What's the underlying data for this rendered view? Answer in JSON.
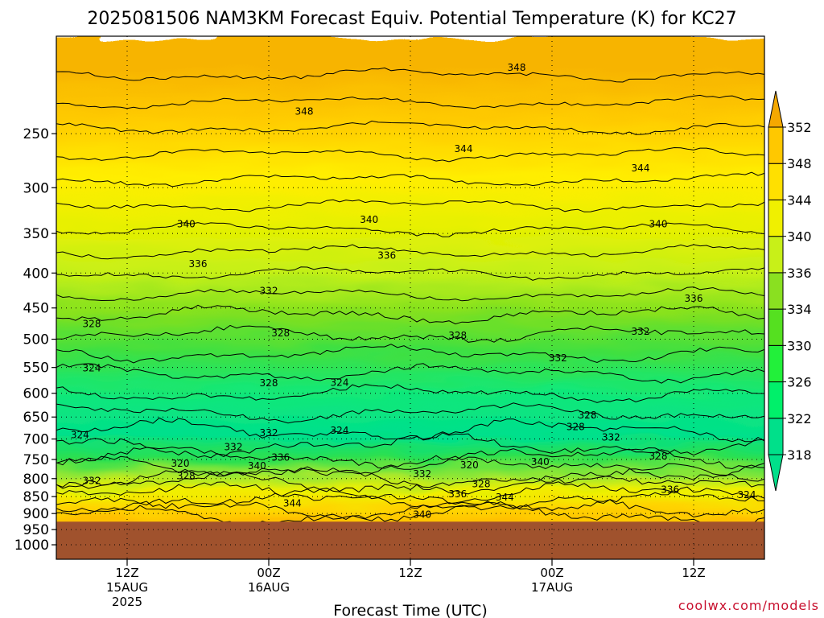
{
  "chart_data": {
    "type": "heatmap",
    "title": "2025081506 NAM3KM Forecast Equiv. Potential Temperature (K) for KC27",
    "xlabel": "Forecast Time (UTC)",
    "ylabel": "",
    "credit": "coolwx.com/models",
    "y_axis": {
      "scale": "log-pressure",
      "range": [
        1050,
        180
      ],
      "ticks": [
        250,
        300,
        350,
        400,
        450,
        500,
        550,
        600,
        650,
        700,
        750,
        800,
        850,
        900,
        950,
        1000
      ],
      "tick_labels": [
        "250",
        "300",
        "350",
        "400",
        "450",
        "500",
        "550",
        "600",
        "650",
        "700",
        "750",
        "800",
        "850",
        "900",
        "950",
        "1000"
      ],
      "grid": true
    },
    "x_axis": {
      "range_hours": [
        0,
        60
      ],
      "ticks": [
        {
          "hour": 6,
          "lines": [
            "12Z",
            "15AUG",
            "2025"
          ]
        },
        {
          "hour": 18,
          "lines": [
            "00Z",
            "16AUG"
          ]
        },
        {
          "hour": 30,
          "lines": [
            "12Z"
          ]
        },
        {
          "hour": 42,
          "lines": [
            "00Z",
            "17AUG"
          ]
        },
        {
          "hour": 54,
          "lines": [
            "12Z"
          ]
        }
      ],
      "grid": true
    },
    "surface_pressure": 925,
    "colorbar": {
      "levels": [
        318,
        322,
        326,
        330,
        334,
        336,
        340,
        344,
        348,
        352
      ],
      "labels": [
        "318",
        "322",
        "326",
        "330",
        "334",
        "336",
        "340",
        "344",
        "348",
        "352"
      ],
      "colors": [
        "#00e08a",
        "#00f06a",
        "#22f03a",
        "#55e020",
        "#8ae020",
        "#c8f018",
        "#f0f000",
        "#ffe000",
        "#ffc800",
        "#f5a800"
      ]
    },
    "contour_labels": [
      {
        "text": "348",
        "hour": 39,
        "p": 200
      },
      {
        "text": "348",
        "hour": 21,
        "p": 232
      },
      {
        "text": "344",
        "hour": 34.5,
        "p": 263
      },
      {
        "text": "344",
        "hour": 49.5,
        "p": 281
      },
      {
        "text": "340",
        "hour": 11,
        "p": 339
      },
      {
        "text": "340",
        "hour": 26.5,
        "p": 334
      },
      {
        "text": "340",
        "hour": 51,
        "p": 339
      },
      {
        "text": "336",
        "hour": 12,
        "p": 388
      },
      {
        "text": "336",
        "hour": 28,
        "p": 377
      },
      {
        "text": "336",
        "hour": 54,
        "p": 436
      },
      {
        "text": "332",
        "hour": 18,
        "p": 425
      },
      {
        "text": "332",
        "hour": 49.5,
        "p": 487
      },
      {
        "text": "332",
        "hour": 42.5,
        "p": 533
      },
      {
        "text": "328",
        "hour": 3,
        "p": 475
      },
      {
        "text": "328",
        "hour": 19,
        "p": 490
      },
      {
        "text": "328",
        "hour": 34,
        "p": 494
      },
      {
        "text": "324",
        "hour": 3,
        "p": 551
      },
      {
        "text": "328",
        "hour": 18,
        "p": 580
      },
      {
        "text": "324",
        "hour": 24,
        "p": 579
      },
      {
        "text": "324",
        "hour": 2,
        "p": 690
      },
      {
        "text": "324",
        "hour": 24,
        "p": 680
      },
      {
        "text": "332",
        "hour": 18,
        "p": 686
      },
      {
        "text": "328",
        "hour": 44,
        "p": 672
      },
      {
        "text": "328",
        "hour": 45,
        "p": 646
      },
      {
        "text": "332",
        "hour": 47,
        "p": 696
      },
      {
        "text": "328",
        "hour": 51,
        "p": 742
      },
      {
        "text": "332",
        "hour": 15,
        "p": 719
      },
      {
        "text": "336",
        "hour": 19,
        "p": 745
      },
      {
        "text": "340",
        "hour": 17,
        "p": 766
      },
      {
        "text": "340",
        "hour": 41,
        "p": 756
      },
      {
        "text": "320",
        "hour": 10.5,
        "p": 760
      },
      {
        "text": "320",
        "hour": 35,
        "p": 764
      },
      {
        "text": "328",
        "hour": 11,
        "p": 793
      },
      {
        "text": "332",
        "hour": 3,
        "p": 806
      },
      {
        "text": "332",
        "hour": 31,
        "p": 788
      },
      {
        "text": "328",
        "hour": 36,
        "p": 815
      },
      {
        "text": "336",
        "hour": 34,
        "p": 843
      },
      {
        "text": "344",
        "hour": 38,
        "p": 852
      },
      {
        "text": "336",
        "hour": 52,
        "p": 830
      },
      {
        "text": "324",
        "hour": 58.5,
        "p": 845
      },
      {
        "text": "344",
        "hour": 20,
        "p": 869
      },
      {
        "text": "340",
        "hour": 31,
        "p": 903
      }
    ]
  }
}
